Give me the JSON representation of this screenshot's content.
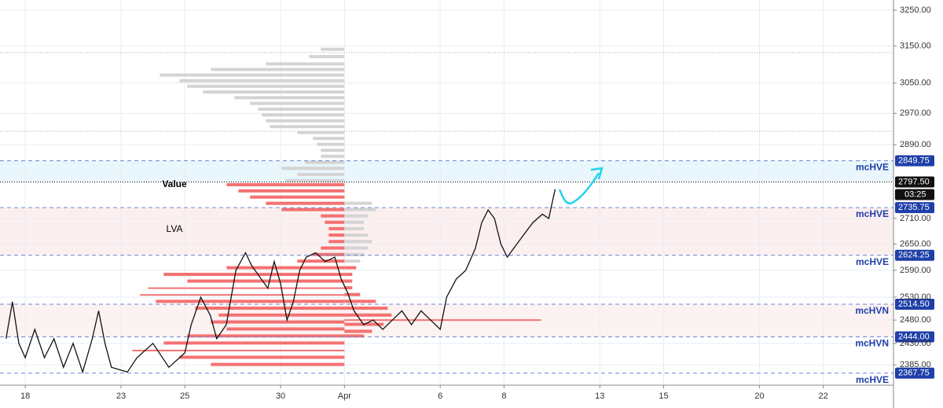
{
  "chart_data": {
    "type": "line",
    "log_scale": true,
    "grid": true,
    "ylim": [
      2343,
      3279
    ],
    "yticks": [
      {
        "value": 3250,
        "label": "3250.00"
      },
      {
        "value": 3150,
        "label": "3150.00"
      },
      {
        "value": 3050,
        "label": "3050.00"
      },
      {
        "value": 2970,
        "label": "2970.00"
      },
      {
        "value": 2890,
        "label": "2890.00"
      },
      {
        "value": 2710,
        "label": "2710.00"
      },
      {
        "value": 2650,
        "label": "2650.00"
      },
      {
        "value": 2590,
        "label": "2590.00"
      },
      {
        "value": 2530,
        "label": "2530.00"
      },
      {
        "value": 2480,
        "label": "2480.00"
      },
      {
        "value": 2430,
        "label": "2430.00"
      },
      {
        "value": 2385,
        "label": "2385.00"
      }
    ],
    "xlim": [
      -0.79,
      27.2
    ],
    "xticks": [
      {
        "value": 0,
        "label": "18"
      },
      {
        "value": 3,
        "label": "23"
      },
      {
        "value": 5,
        "label": "25"
      },
      {
        "value": 8,
        "label": "30"
      },
      {
        "value": 10,
        "label": "Apr"
      },
      {
        "value": 13,
        "label": "6"
      },
      {
        "value": 15,
        "label": "8"
      },
      {
        "value": 18,
        "label": "13"
      },
      {
        "value": 20,
        "label": "15"
      },
      {
        "value": 23,
        "label": "20"
      },
      {
        "value": 25,
        "label": "22"
      }
    ],
    "color": "#111111",
    "x": [
      -0.6,
      -0.4,
      -0.2,
      0,
      0.3,
      0.6,
      0.9,
      1.2,
      1.5,
      1.8,
      2.1,
      2.3,
      2.5,
      2.7,
      3.2,
      3.5,
      4,
      4.5,
      5,
      5.2,
      5.5,
      5.8,
      6,
      6.3,
      6.6,
      6.9,
      7.1,
      7.4,
      7.6,
      7.8,
      8,
      8.2,
      8.4,
      8.6,
      8.8,
      9.1,
      9.4,
      9.7,
      9.9,
      10.1,
      10.3,
      10.6,
      10.9,
      11.2,
      11.5,
      11.8,
      12.1,
      12.4,
      12.7,
      13,
      13.2,
      13.5,
      13.8,
      14.1,
      14.3,
      14.5,
      14.7,
      14.9,
      15.1,
      15.3,
      15.6,
      15.9,
      16.2,
      16.4,
      16.6
    ],
    "values": [
      2440,
      2520,
      2430,
      2400,
      2460,
      2400,
      2440,
      2380,
      2430,
      2370,
      2440,
      2500,
      2430,
      2380,
      2370,
      2400,
      2430,
      2380,
      2410,
      2470,
      2530,
      2490,
      2440,
      2470,
      2590,
      2630,
      2600,
      2570,
      2550,
      2610,
      2560,
      2480,
      2520,
      2590,
      2620,
      2630,
      2610,
      2620,
      2570,
      2540,
      2500,
      2470,
      2480,
      2460,
      2480,
      2500,
      2470,
      2500,
      2480,
      2460,
      2530,
      2570,
      2590,
      2640,
      2700,
      2730,
      2710,
      2650,
      2620,
      2640,
      2670,
      2700,
      2720,
      2710,
      2780
    ],
    "reference_lines": [
      3132,
      2924
    ],
    "levels": {
      "values": [
        2849.75,
        2797.5,
        2735.75,
        2624.25,
        2514.5,
        2444,
        2367.75
      ],
      "value_labels": [
        "2849.75",
        "2797.50",
        "2735.75",
        "2624.25",
        "2514.50",
        "2444.00",
        "2367.75"
      ],
      "names": [
        "mcHVE",
        null,
        "mcHVE",
        "mcHVE",
        "mcHVN",
        "mcHVN",
        "mcHVE"
      ],
      "colors": [
        "#1f3fa8",
        "#111111",
        "#1f3fa8",
        "#1f3fa8",
        "#1f3fa8",
        "#1f3fa8",
        "#1f3fa8"
      ]
    },
    "countdown": "03:25",
    "annotations": [
      "Value",
      "LVA"
    ],
    "profiles": [
      {
        "anchor": 10,
        "direction": "left",
        "series": [
          {
            "color": "#d4d4d4",
            "prices": [
              3140,
              3120,
              3100,
              3085,
              3070,
              3055,
              3040,
              3025,
              3010,
              2995,
              2980,
              2965,
              2950,
              2935,
              2920,
              2905,
              2890,
              2875,
              2860,
              2845,
              2830,
              2815,
              2800
            ],
            "values": [
              30,
              45,
              100,
              170,
              235,
              210,
              200,
              180,
              140,
              120,
              110,
              105,
              100,
              95,
              60,
              40,
              35,
              30,
              30,
              50,
              80,
              60,
              75
            ]
          },
          {
            "color": "#f47171",
            "prices": [
              2790,
              2775,
              2760,
              2745,
              2730,
              2715,
              2700,
              2685,
              2670,
              2655,
              2640,
              2625,
              2610,
              2595,
              2580,
              2565,
              2550,
              2535,
              2520,
              2505,
              2490,
              2475,
              2460,
              2445,
              2430,
              2415,
              2400,
              2385
            ],
            "values": [
              150,
              135,
              120,
              100,
              80,
              30,
              25,
              20,
              20,
              20,
              30,
              40,
              60,
              150,
              230,
              200,
              250,
              260,
              240,
              190,
              160,
              170,
              150,
              200,
              230,
              270,
              210,
              170
            ]
          }
        ]
      },
      {
        "anchor": 10,
        "direction": "right",
        "series": [
          {
            "color": "#d4d4d4",
            "prices": [
              2745,
              2730,
              2715,
              2700,
              2685,
              2670,
              2655,
              2640,
              2625,
              2610
            ],
            "values": [
              35,
              40,
              30,
              25,
              25,
              30,
              35,
              30,
              25,
              20
            ]
          },
          {
            "color": "#f47171",
            "prices": [
              2595,
              2580,
              2565,
              2550,
              2535,
              2520,
              2505,
              2490,
              2480,
              2470,
              2455,
              2445
            ],
            "values": [
              15,
              10,
              10,
              10,
              20,
              40,
              55,
              60,
              250,
              50,
              35,
              25
            ]
          }
        ]
      }
    ]
  }
}
